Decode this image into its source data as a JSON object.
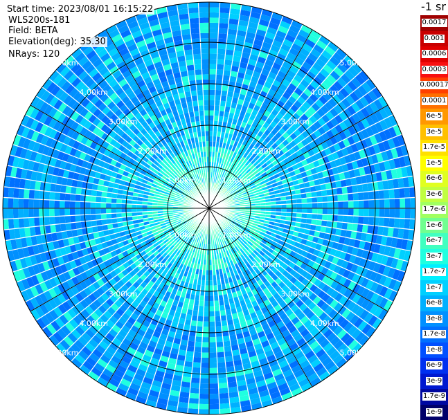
{
  "info": {
    "start_time": "Start time: 2023/08/01 16:15:22",
    "site": "WLS200s-181",
    "field": "Field: BETA",
    "elevation": "Elevation(deg): 35.30",
    "nrays": "NRays: 120"
  },
  "colorbar": {
    "unit": "-1 sr",
    "levels": [
      {
        "label": "0.0017",
        "color": "#a00000"
      },
      {
        "label": "0.001",
        "color": "#c80000"
      },
      {
        "label": "0.0006",
        "color": "#e00000"
      },
      {
        "label": "0.0003",
        "color": "#f81010"
      },
      {
        "label": "0.00017",
        "color": "#ff4000"
      },
      {
        "label": "0.0001",
        "color": "#ff7000"
      },
      {
        "label": "6e-5",
        "color": "#ff9800"
      },
      {
        "label": "3e-5",
        "color": "#ffc000"
      },
      {
        "label": "1.7e-5",
        "color": "#ffe000"
      },
      {
        "label": "1e-5",
        "color": "#ffff00"
      },
      {
        "label": "6e-6",
        "color": "#e0ff20"
      },
      {
        "label": "3e-6",
        "color": "#c0ff40"
      },
      {
        "label": "1.7e-6",
        "color": "#a0ff60"
      },
      {
        "label": "1e-6",
        "color": "#70ff90"
      },
      {
        "label": "6e-7",
        "color": "#40ffc0"
      },
      {
        "label": "3e-7",
        "color": "#20ffe0"
      },
      {
        "label": "1.7e-7",
        "color": "#00f0ff"
      },
      {
        "label": "1e-7",
        "color": "#00d0ff"
      },
      {
        "label": "6e-8",
        "color": "#00b0ff"
      },
      {
        "label": "3e-8",
        "color": "#0090ff"
      },
      {
        "label": "1.7e-8",
        "color": "#0070ff"
      },
      {
        "label": "1e-8",
        "color": "#0050ff"
      },
      {
        "label": "6e-9",
        "color": "#0030f0"
      },
      {
        "label": "3e-9",
        "color": "#0018d0"
      },
      {
        "label": "1.7e-9",
        "color": "#0008a0"
      },
      {
        "label": "1e-9",
        "color": "#00006a"
      }
    ]
  },
  "ppi": {
    "nrays": 120,
    "max_range_km": 5,
    "ring_labels": [
      "1.00km",
      "2.00km",
      "3.00km",
      "4.00km",
      "5.00km"
    ],
    "palette": [
      "#00d0ff",
      "#00b0ff",
      "#0090ff",
      "#0070ff",
      "#20ffe0",
      "#40ffc0",
      "#0050ff"
    ]
  }
}
